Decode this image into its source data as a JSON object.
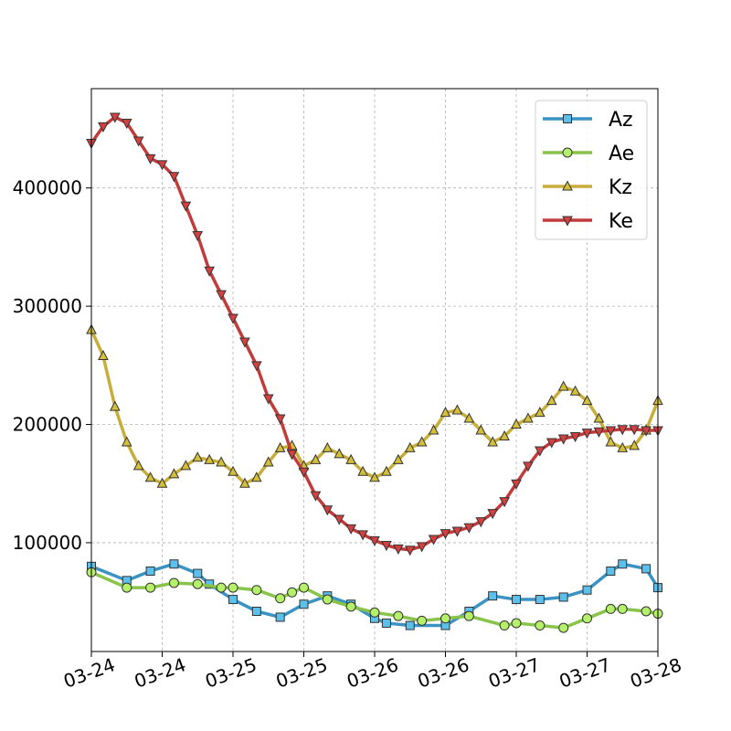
{
  "chart_data": {
    "type": "line",
    "title": "",
    "xlabel": "",
    "ylabel": "",
    "x_tick_labels": [
      "03-24",
      "03-24",
      "03-25",
      "03-25",
      "03-26",
      "03-26",
      "03-27",
      "03-27",
      "03-28"
    ],
    "y_ticks": [
      100000,
      200000,
      300000,
      400000
    ],
    "y_tick_labels": [
      "100000",
      "200000",
      "300000",
      "400000"
    ],
    "xlim": [
      0,
      96
    ],
    "ylim": [
      8000,
      484000
    ],
    "grid": true,
    "legend_position": "top-right",
    "series": [
      {
        "name": "Az",
        "color": "#3a93c3",
        "marker_fill": "#5bc0eb",
        "marker": "square",
        "x": [
          0,
          6,
          10,
          14,
          18,
          20,
          24,
          28,
          32,
          36,
          40,
          44,
          48,
          50,
          54,
          60,
          64,
          68,
          72,
          76,
          80,
          84,
          88,
          90,
          94,
          96
        ],
        "values": [
          80000,
          68000,
          76000,
          82000,
          74000,
          65000,
          52000,
          42000,
          37000,
          48000,
          55000,
          48000,
          36000,
          32000,
          30000,
          30000,
          42000,
          55000,
          52000,
          52000,
          54000,
          60000,
          76000,
          82000,
          78000,
          62000
        ]
      },
      {
        "name": "Ae",
        "color": "#88c34a",
        "marker_fill": "#b5f06a",
        "marker": "circle",
        "x": [
          0,
          6,
          10,
          14,
          18,
          22,
          24,
          28,
          32,
          34,
          36,
          40,
          44,
          48,
          52,
          56,
          60,
          64,
          70,
          72,
          76,
          80,
          84,
          88,
          90,
          94,
          96
        ],
        "values": [
          75000,
          62000,
          62000,
          66000,
          65000,
          62000,
          62000,
          60000,
          53000,
          58000,
          62000,
          52000,
          46000,
          41000,
          38000,
          34000,
          36000,
          38000,
          30000,
          32000,
          30000,
          28000,
          36000,
          44000,
          44000,
          42000,
          40000
        ]
      },
      {
        "name": "Kz",
        "color": "#c7ae3b",
        "marker_fill": "#d4bf3a",
        "marker": "triangle-up",
        "x": [
          0,
          2,
          4,
          6,
          8,
          10,
          12,
          14,
          16,
          18,
          20,
          22,
          24,
          26,
          28,
          30,
          32,
          34,
          36,
          38,
          40,
          42,
          44,
          46,
          48,
          50,
          52,
          54,
          56,
          58,
          60,
          62,
          64,
          66,
          68,
          70,
          72,
          74,
          76,
          78,
          80,
          82,
          84,
          86,
          88,
          90,
          92,
          94,
          96
        ],
        "values": [
          280000,
          258000,
          215000,
          185000,
          165000,
          155000,
          150000,
          158000,
          165000,
          172000,
          170000,
          168000,
          160000,
          150000,
          155000,
          168000,
          180000,
          182000,
          165000,
          170000,
          180000,
          175000,
          170000,
          160000,
          155000,
          160000,
          170000,
          180000,
          185000,
          195000,
          210000,
          212000,
          205000,
          195000,
          185000,
          190000,
          200000,
          205000,
          210000,
          220000,
          232000,
          228000,
          220000,
          205000,
          185000,
          180000,
          182000,
          195000,
          220000
        ]
      },
      {
        "name": "Ke",
        "color": "#c23b3b",
        "marker_fill": "#d24040",
        "marker": "triangle-down",
        "x": [
          0,
          2,
          4,
          6,
          8,
          10,
          12,
          14,
          16,
          18,
          20,
          22,
          24,
          26,
          28,
          30,
          32,
          34,
          36,
          38,
          40,
          42,
          44,
          46,
          48,
          50,
          52,
          54,
          56,
          58,
          60,
          62,
          64,
          66,
          68,
          70,
          72,
          74,
          76,
          78,
          80,
          82,
          84,
          86,
          88,
          90,
          92,
          94,
          96
        ],
        "values": [
          438000,
          452000,
          460000,
          455000,
          440000,
          425000,
          420000,
          410000,
          385000,
          360000,
          330000,
          310000,
          290000,
          270000,
          250000,
          222000,
          205000,
          175000,
          160000,
          140000,
          128000,
          120000,
          112000,
          107000,
          102000,
          98000,
          95000,
          94000,
          97000,
          103000,
          108000,
          110000,
          113000,
          118000,
          125000,
          135000,
          150000,
          165000,
          178000,
          185000,
          188000,
          190000,
          193000,
          194000,
          195000,
          196000,
          196000,
          195000,
          195000
        ]
      }
    ]
  }
}
